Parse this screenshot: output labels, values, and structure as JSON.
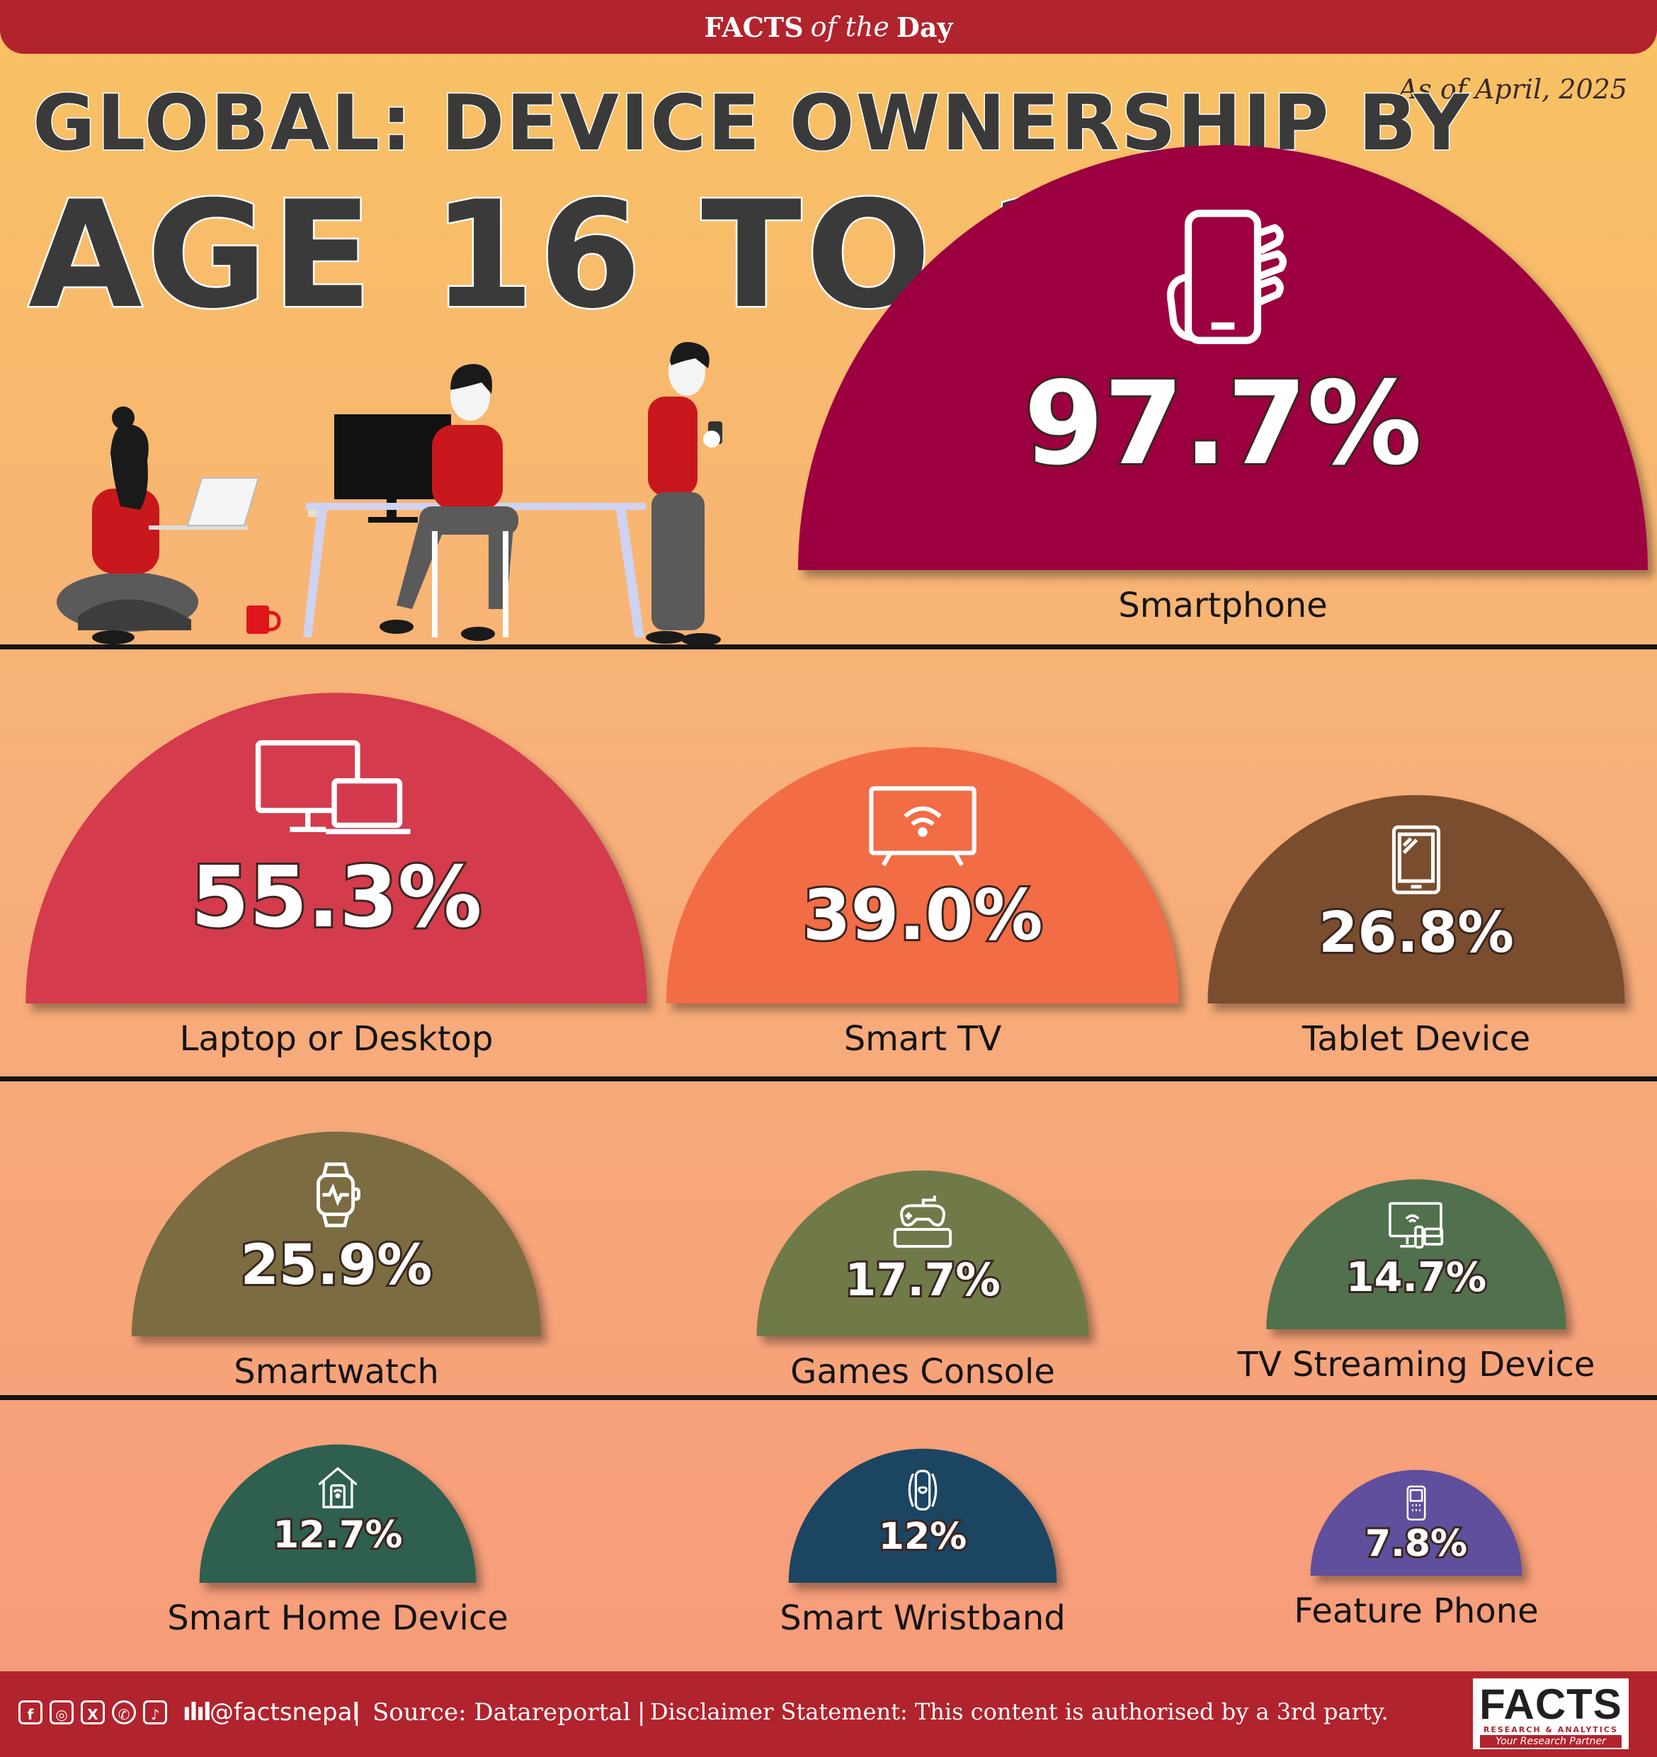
{
  "header": {
    "brand_a": "FACTS",
    "brand_b": "of the",
    "brand_c": "Day",
    "as_of": "As of April, 2025"
  },
  "title": {
    "line1": "GLOBAL: DEVICE OWNERSHIP BY",
    "line2": "AGE 16 TO 24"
  },
  "chart_data": {
    "type": "bar",
    "title": "GLOBAL: DEVICE OWNERSHIP BY AGE 16 TO 24",
    "categories": [
      "Smartphone",
      "Laptop or Desktop",
      "Smart TV",
      "Tablet Device",
      "Smartwatch",
      "Games Console",
      "TV Streaming Device",
      "Smart Home Device",
      "Smart Wristband",
      "Feature Phone"
    ],
    "values": [
      97.7,
      55.3,
      39.0,
      26.8,
      25.9,
      17.7,
      14.7,
      12.7,
      12,
      7.8
    ],
    "value_labels": [
      "97.7%",
      "55.3%",
      "39.0%",
      "26.8%",
      "25.9%",
      "17.7%",
      "14.7%",
      "12.7%",
      "12%",
      "7.8%"
    ],
    "icons": [
      "smartphone-hand-icon",
      "monitor-laptop-icon",
      "wifi-tv-icon",
      "tablet-icon",
      "smartwatch-icon",
      "game-console-icon",
      "streaming-tv-icon",
      "smart-home-icon",
      "wristband-icon",
      "feature-phone-icon"
    ],
    "colors": [
      "#9d0640",
      "#d43a4e",
      "#f26c45",
      "#7a4e2d",
      "#7b6c42",
      "#6f7a4a",
      "#51704d",
      "#2f5f4f",
      "#1b4462",
      "#5e4f9c"
    ]
  },
  "footer": {
    "social_icons": [
      "facebook-icon",
      "instagram-icon",
      "x-icon",
      "viber-icon",
      "tiktok-icon"
    ],
    "handle": "@factsnepal",
    "source": "Source: Datareportal",
    "disclaimer": "Disclaimer Statement: This content is authorised by a 3rd party.",
    "logo_main": "FACTS",
    "logo_sub": "RESEARCH & ANALYTICS",
    "logo_tagline": "Your Research Partner"
  }
}
